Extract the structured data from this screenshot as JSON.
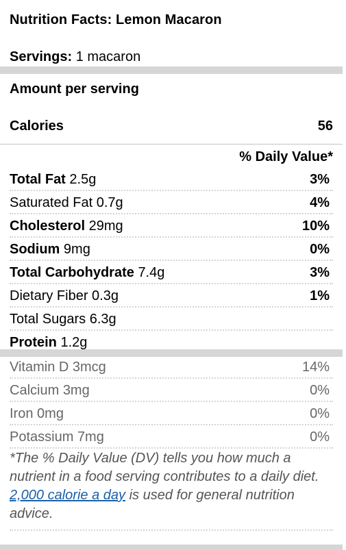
{
  "label": {
    "title": "Nutrition Facts: Lemon Macaron",
    "servings_label": "Servings:",
    "servings_value": "1 macaron",
    "amount_per_serving": "Amount per serving",
    "calories_label": "Calories",
    "calories_value": "56",
    "daily_value_header": "% Daily Value*",
    "nutrients": [
      {
        "name": "Total Fat",
        "amount": "2.5g",
        "pct": "3%",
        "name_bold": true
      },
      {
        "name": "Saturated Fat",
        "amount": "0.7g",
        "pct": "4%",
        "name_bold": false
      },
      {
        "name": "Cholesterol",
        "amount": "29mg",
        "pct": "10%",
        "name_bold": true
      },
      {
        "name": "Sodium",
        "amount": "9mg",
        "pct": "0%",
        "name_bold": true
      },
      {
        "name": "Total Carbohydrate",
        "amount": "7.4g",
        "pct": "3%",
        "name_bold": true
      },
      {
        "name": "Dietary Fiber",
        "amount": "0.3g",
        "pct": "1%",
        "name_bold": false
      },
      {
        "name": "Total Sugars",
        "amount": "6.3g",
        "pct": "",
        "name_bold": false
      },
      {
        "name": "Protein",
        "amount": "1.2g",
        "pct": "",
        "name_bold": true
      }
    ],
    "vitamins": [
      {
        "name": "Vitamin D",
        "amount": "3mcg",
        "pct": "14%"
      },
      {
        "name": "Calcium",
        "amount": "3mg",
        "pct": "0%"
      },
      {
        "name": "Iron",
        "amount": "0mg",
        "pct": "0%"
      },
      {
        "name": "Potassium",
        "amount": "7mg",
        "pct": "0%"
      }
    ],
    "footnote_before": "*The % Daily Value (DV) tells you how much a nutrient in a food serving contributes to a daily diet. ",
    "footnote_link": "2,000 calorie a day",
    "footnote_after": " is used for general nutrition advice."
  },
  "colors": {
    "bar": "#d6d6d6",
    "link": "#1a5fa8",
    "vitamin_text": "#666666",
    "footnote_text": "#555555"
  }
}
